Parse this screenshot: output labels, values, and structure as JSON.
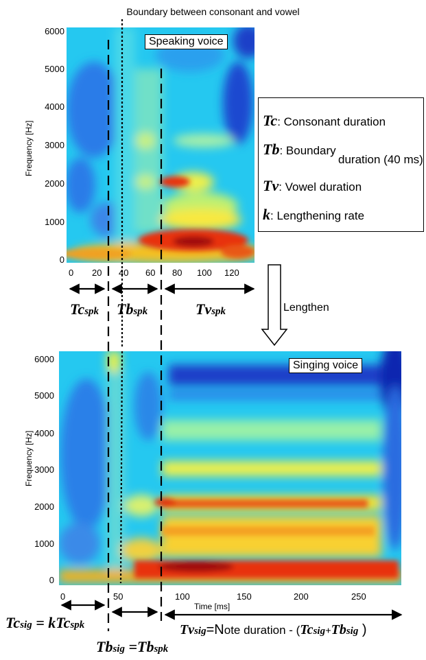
{
  "header": {
    "title": "Boundary between consonant and vowel"
  },
  "top_plot": {
    "label": "Speaking voice",
    "ylabel": "Frequency [Hz]",
    "yticks": [
      "6000",
      "5000",
      "4000",
      "3000",
      "2000",
      "1000",
      "0"
    ],
    "xticks": [
      "0",
      "20",
      "40",
      "60",
      "80",
      "100",
      "120"
    ]
  },
  "bottom_plot": {
    "label": "Singing voice",
    "ylabel": "Frequency [Hz]",
    "xlabel": "Time [ms]",
    "yticks": [
      "6000",
      "5000",
      "4000",
      "3000",
      "2000",
      "1000",
      "0"
    ],
    "xticks": [
      "0",
      "50",
      "100",
      "150",
      "200",
      "250"
    ]
  },
  "legend": {
    "tc_sym": "Tc",
    "tc_text": ": Consonant duration",
    "tb_sym": "Tb",
    "tb_text": ": Boundary",
    "tb_text2": "duration (40 ms)",
    "tv_sym": "Tv",
    "tv_text": ": Vowel duration",
    "k_sym": "k",
    "k_text": ": Lengthening rate"
  },
  "arrow": {
    "label": "Lengthen"
  },
  "segments_top": {
    "tc_main": "Tc",
    "tc_sub": "spk",
    "tb_main": "Tb",
    "tb_sub": "spk",
    "tv_main": "Tv",
    "tv_sub": "spk"
  },
  "segments_bottom": {
    "tc_main": "Tc",
    "tc_sub": "sig",
    "tc_eq": " = kTc",
    "tc_eq_sub": "spk",
    "tb_main": "Tb",
    "tb_sub": "sig",
    "tb_eq": " =Tb",
    "tb_eq_sub": "spk",
    "tv_main": "Tv",
    "tv_sub": "sig",
    "tv_eq_a": "=N",
    "tv_eq_b": "ote duration - (",
    "tv_eq_c": "Tc",
    "tv_eq_c_sub": "sig+",
    "tv_eq_d": "Tb",
    "tv_eq_d_sub": "sig",
    "tv_eq_e": " )"
  }
}
